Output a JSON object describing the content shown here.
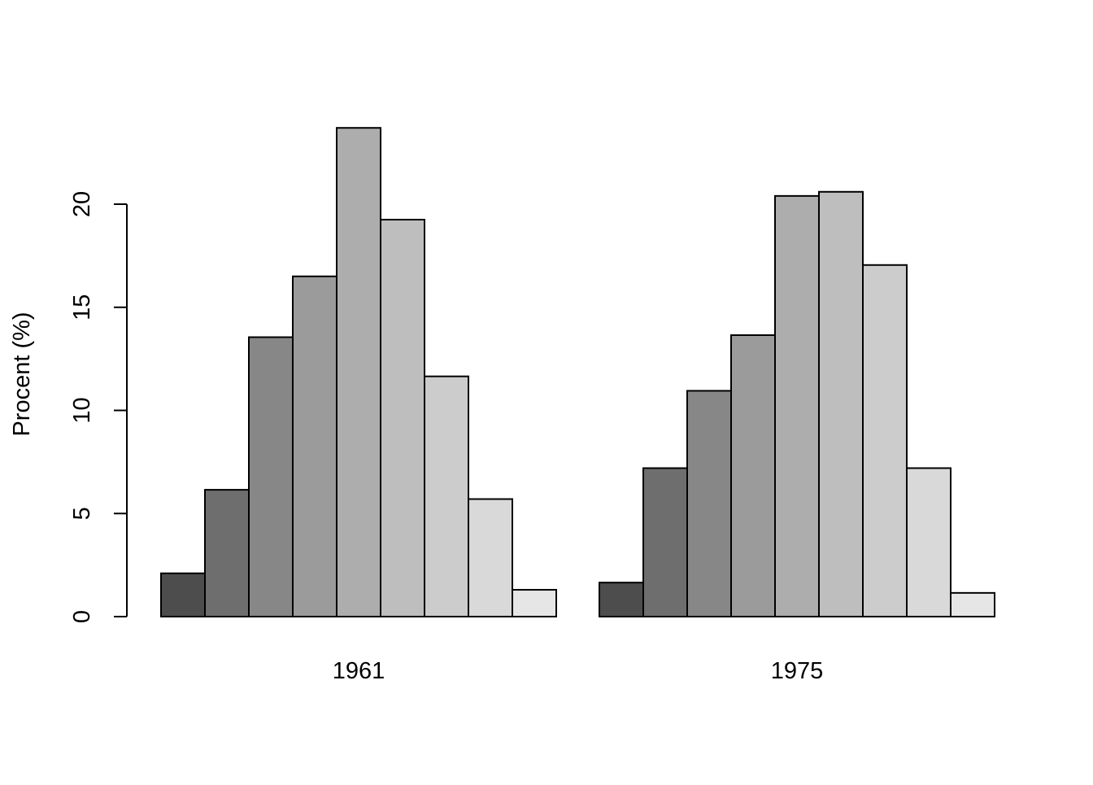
{
  "chart_data": {
    "type": "bar",
    "layout": "grouped-side-by-side",
    "title": "",
    "xlabel": "",
    "ylabel": "Procent (%)",
    "ylim": [
      0,
      23.7
    ],
    "yticks": [
      0,
      5,
      10,
      15,
      20
    ],
    "grid": false,
    "legend": "none",
    "categories": [
      "1961",
      "1975"
    ],
    "colors": [
      "#4d4d4d",
      "#6e6e6e",
      "#878787",
      "#9b9b9b",
      "#adadad",
      "#bebebe",
      "#cccccc",
      "#d9d9d9",
      "#e6e6e6"
    ],
    "series": [
      {
        "values": [
          2.1,
          1.65
        ]
      },
      {
        "values": [
          6.15,
          7.2
        ]
      },
      {
        "values": [
          13.55,
          10.95
        ]
      },
      {
        "values": [
          16.5,
          13.65
        ]
      },
      {
        "values": [
          23.7,
          20.4
        ]
      },
      {
        "values": [
          19.25,
          20.6
        ]
      },
      {
        "values": [
          11.65,
          17.05
        ]
      },
      {
        "values": [
          5.7,
          7.2
        ]
      },
      {
        "values": [
          1.3,
          1.15
        ]
      }
    ]
  }
}
